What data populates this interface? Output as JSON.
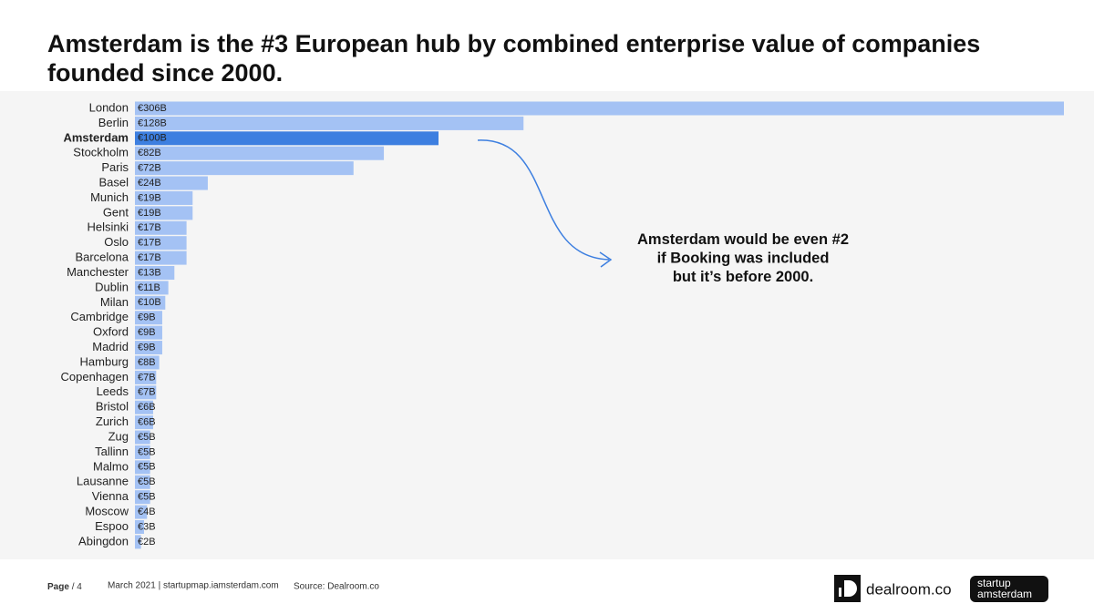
{
  "chart_data": {
    "type": "bar",
    "orientation": "horizontal",
    "title": "Amsterdam is the #3 European hub by combined enterprise value of companies founded since 2000.",
    "categories": [
      "London",
      "Berlin",
      "Amsterdam",
      "Stockholm",
      "Paris",
      "Basel",
      "Munich",
      "Gent",
      "Helsinki",
      "Oslo",
      "Barcelona",
      "Manchester",
      "Dublin",
      "Milan",
      "Cambridge",
      "Oxford",
      "Madrid",
      "Hamburg",
      "Copenhagen",
      "Leeds",
      "Bristol",
      "Zurich",
      "Zug",
      "Tallinn",
      "Malmo",
      "Lausanne",
      "Vienna",
      "Moscow",
      "Espoo",
      "Abingdon"
    ],
    "values": [
      306,
      128,
      100,
      82,
      72,
      24,
      19,
      19,
      17,
      17,
      17,
      13,
      11,
      10,
      9,
      9,
      9,
      8,
      7,
      7,
      6,
      6,
      5,
      5,
      5,
      5,
      5,
      4,
      3,
      2
    ],
    "value_labels": [
      "€306B",
      "€128B",
      "€100B",
      "€82B",
      "€72B",
      "€24B",
      "€19B",
      "€19B",
      "€17B",
      "€17B",
      "€17B",
      "€13B",
      "€11B",
      "€10B",
      "€9B",
      "€9B",
      "€9B",
      "€8B",
      "€7B",
      "€7B",
      "€6B",
      "€6B",
      "€5B",
      "€5B",
      "€5B",
      "€5B",
      "€5B",
      "€4B",
      "€3B",
      "€2B"
    ],
    "color": "#a4c2f4",
    "highlight": {
      "index": 2,
      "color": "#3d7fe0"
    },
    "annotation": "Amsterdam would be even #2 if Booking was included but it’s before 2000."
  },
  "footer": {
    "page_label": "Page",
    "page_number": "/ 4",
    "date": "March 2021 | startupmap.iamsterdam.com",
    "source": "Source: Dealroom.co",
    "logo_dealroom": "dealroom.co",
    "logo_startup": "startup",
    "logo_amsterdam": "amsterdam"
  }
}
